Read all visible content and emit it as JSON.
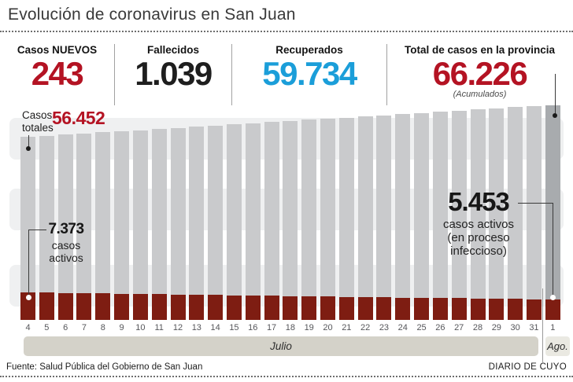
{
  "title": "Evolución de coronavirus en San Juan",
  "colors": {
    "accent_red": "#b41323",
    "accent_blue": "#1b9ed9",
    "number_black": "#1e1e1e",
    "bar_total": "#c9cacc",
    "bar_total_last": "#a8abae",
    "bar_active": "#7e1d12"
  },
  "stats": {
    "nuevos": {
      "label": "Casos NUEVOS",
      "value": "243"
    },
    "fallecidos": {
      "label": "Fallecidos",
      "value": "1.039"
    },
    "recuperados": {
      "label": "Recuperados",
      "value": "59.734"
    },
    "total": {
      "label": "Total de casos en la provincia",
      "value": "66.226",
      "note": "(Acumulados)"
    }
  },
  "chart_data": {
    "type": "bar",
    "title": "Evolución de coronavirus en San Juan",
    "categories": [
      "4",
      "5",
      "6",
      "7",
      "8",
      "9",
      "10",
      "11",
      "12",
      "13",
      "14",
      "15",
      "16",
      "17",
      "18",
      "19",
      "20",
      "21",
      "22",
      "23",
      "24",
      "25",
      "26",
      "27",
      "28",
      "29",
      "30",
      "31",
      "1"
    ],
    "month_labels": {
      "july": "Julio",
      "august": "Ago."
    },
    "ylim": [
      0,
      66226
    ],
    "series": [
      {
        "name": "Casos totales",
        "color": "#c9cacc",
        "values": [
          56452,
          56805,
          57158,
          57511,
          57864,
          58217,
          58570,
          58923,
          59276,
          59629,
          59982,
          60335,
          60688,
          61041,
          61394,
          61747,
          62100,
          62453,
          62806,
          63159,
          63512,
          63865,
          64218,
          64571,
          64924,
          65277,
          65630,
          65983,
          66226
        ]
      },
      {
        "name": "Casos activos",
        "color": "#7e1d12",
        "values": [
          7373,
          7304,
          7236,
          7167,
          7099,
          7030,
          6961,
          6893,
          6824,
          6756,
          6687,
          6619,
          6550,
          6481,
          6413,
          6344,
          6276,
          6207,
          6139,
          6070,
          6001,
          5933,
          5864,
          5796,
          5727,
          5659,
          5590,
          5521,
          5453
        ]
      }
    ],
    "annotations": {
      "casos_totales_label": "Casos\ntotales",
      "first_total_value": "56.452",
      "first_active_value": "7.373",
      "first_active_label": "casos\nactivos",
      "last_active_value": "5.453",
      "last_active_label": "casos activos\n(en proceso\ninfeccioso)"
    }
  },
  "footer": {
    "source": "Fuente: Salud Pública del Gobierno de San Juan",
    "credit": "DIARIO DE CUYO"
  }
}
